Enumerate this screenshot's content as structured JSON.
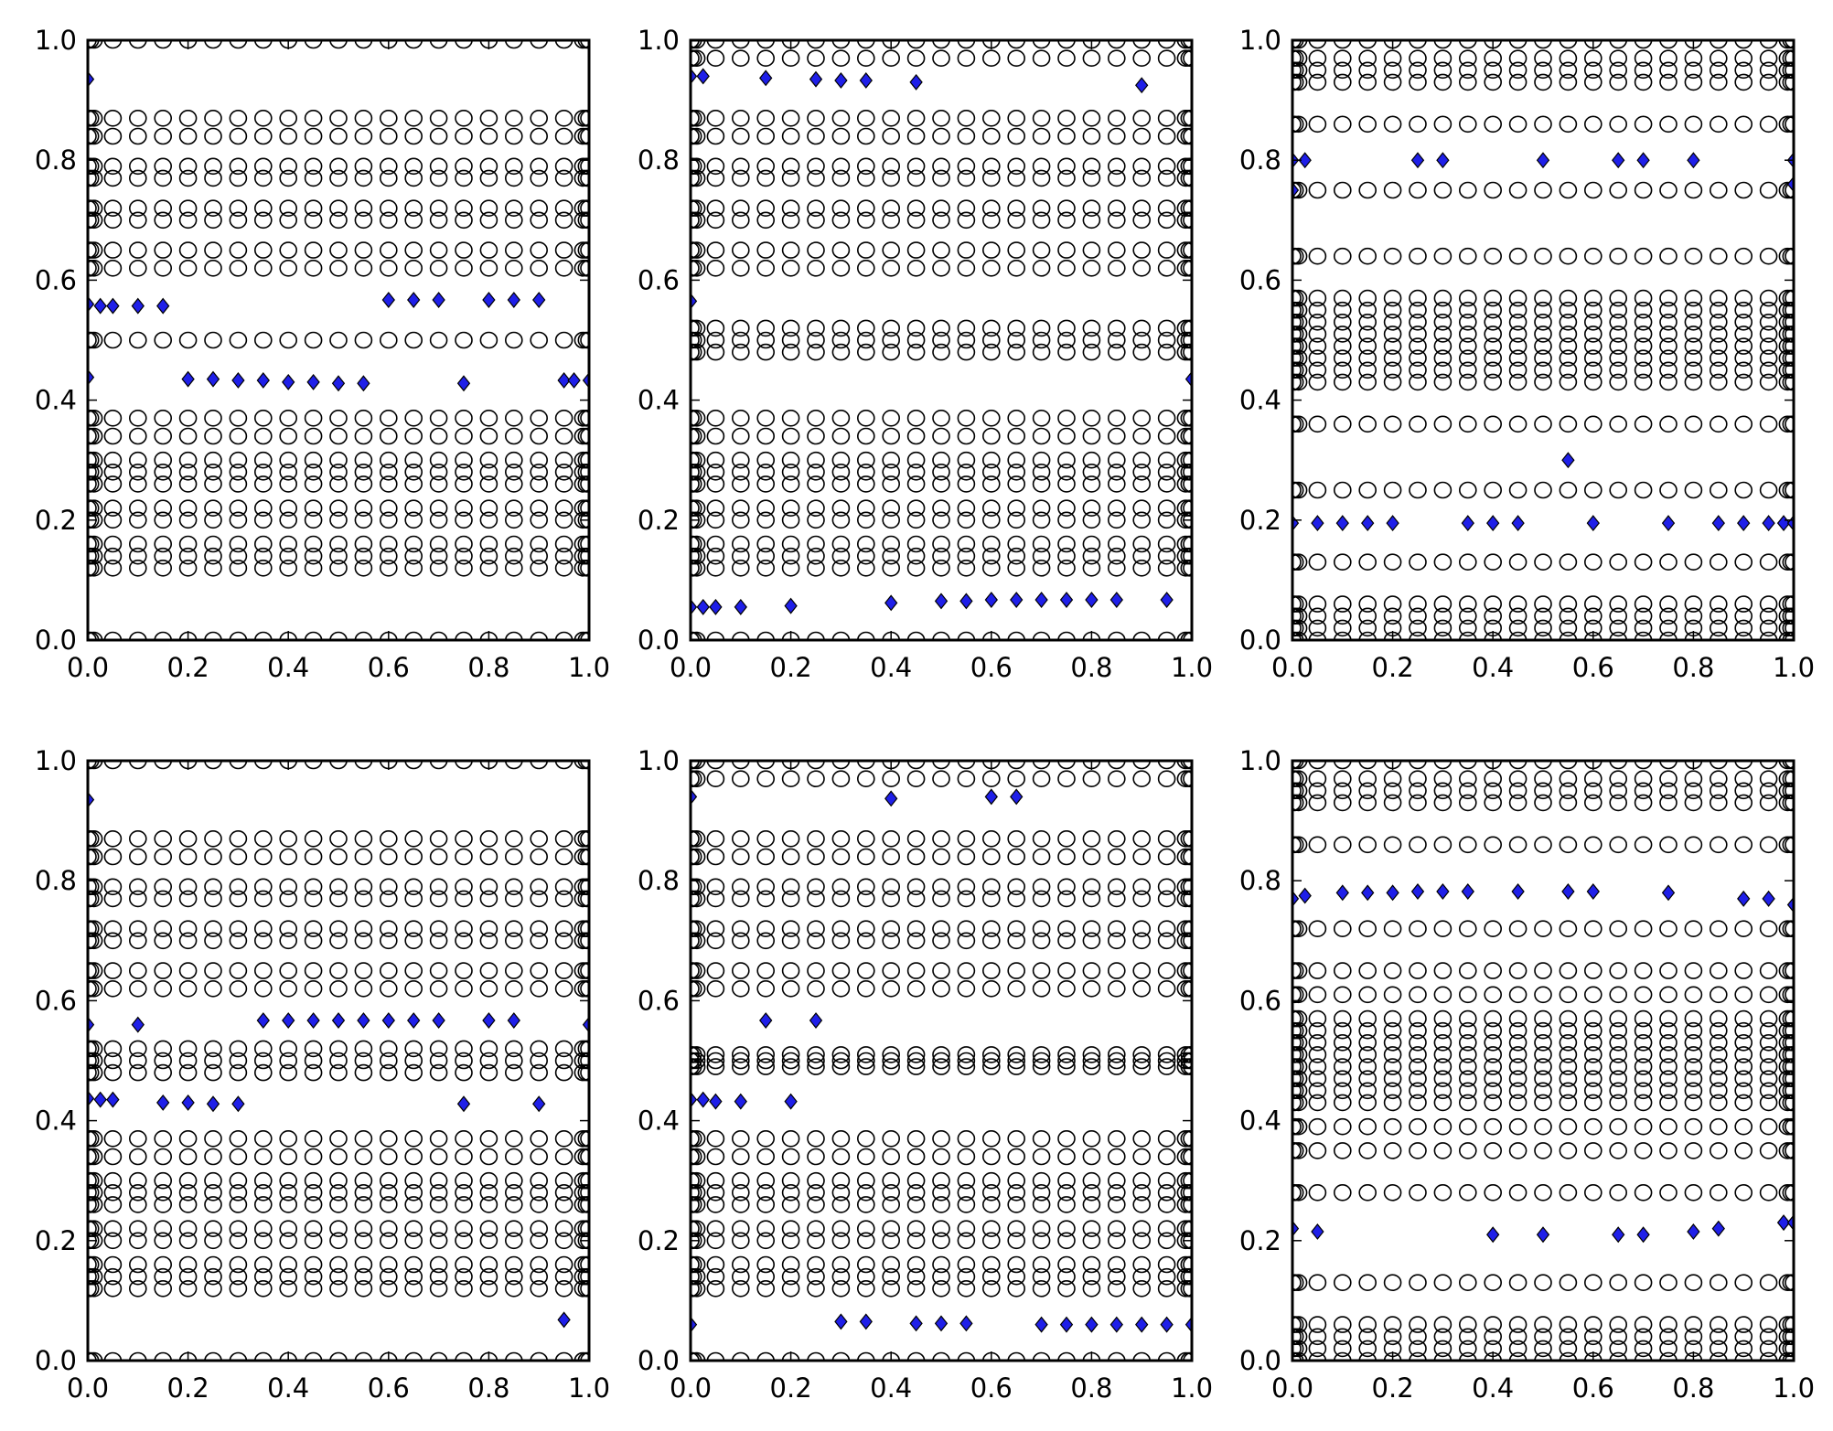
{
  "figure": {
    "layout": "2x3 grid",
    "panel_count": 6
  },
  "style": {
    "ring_stroke": "#000000",
    "diamond_fill": "#1f1fe8",
    "frame_color": "#000000",
    "background": "#ffffff"
  },
  "chart_data": [
    {
      "panel": "top-left",
      "type": "scatter",
      "title": "",
      "xlabel": "",
      "ylabel": "",
      "xlim": [
        0,
        1
      ],
      "ylim": [
        0,
        1
      ],
      "xticks": [
        "0.0",
        "0.2",
        "0.4",
        "0.6",
        "0.8",
        "1.0"
      ],
      "yticks": [
        "0.0",
        "0.2",
        "0.4",
        "0.6",
        "0.8",
        "1.0"
      ],
      "series": [
        {
          "name": "open circles",
          "marker": "o",
          "rows": [
            0.0,
            0.12,
            0.14,
            0.16,
            0.2,
            0.22,
            0.26,
            0.28,
            0.3,
            0.34,
            0.37,
            0.5,
            0.62,
            0.65,
            0.7,
            0.72,
            0.77,
            0.79,
            0.84,
            0.87,
            1.0
          ]
        },
        {
          "name": "blue diamonds",
          "marker": "D",
          "points": [
            [
              0.0,
              0.935
            ],
            [
              0.0,
              0.56
            ],
            [
              0.025,
              0.557
            ],
            [
              0.05,
              0.557
            ],
            [
              0.1,
              0.557
            ],
            [
              0.15,
              0.557
            ],
            [
              0.6,
              0.567
            ],
            [
              0.65,
              0.567
            ],
            [
              0.7,
              0.567
            ],
            [
              0.8,
              0.567
            ],
            [
              0.85,
              0.567
            ],
            [
              0.9,
              0.567
            ],
            [
              0.0,
              0.438
            ],
            [
              0.2,
              0.435
            ],
            [
              0.25,
              0.435
            ],
            [
              0.3,
              0.433
            ],
            [
              0.35,
              0.433
            ],
            [
              0.4,
              0.43
            ],
            [
              0.45,
              0.43
            ],
            [
              0.5,
              0.428
            ],
            [
              0.55,
              0.428
            ],
            [
              0.75,
              0.428
            ],
            [
              0.95,
              0.433
            ],
            [
              0.97,
              0.433
            ],
            [
              1.0,
              0.433
            ]
          ]
        }
      ]
    },
    {
      "panel": "top-middle",
      "type": "scatter",
      "title": "",
      "xlabel": "",
      "ylabel": "",
      "xlim": [
        0,
        1
      ],
      "ylim": [
        0,
        1
      ],
      "xticks": [
        "0.0",
        "0.2",
        "0.4",
        "0.6",
        "0.8",
        "1.0"
      ],
      "yticks": [
        "0.0",
        "0.2",
        "0.4",
        "0.6",
        "0.8",
        "1.0"
      ],
      "series": [
        {
          "name": "open circles",
          "marker": "o",
          "rows": [
            0.0,
            0.12,
            0.14,
            0.16,
            0.2,
            0.22,
            0.26,
            0.28,
            0.3,
            0.34,
            0.37,
            0.48,
            0.5,
            0.52,
            0.62,
            0.65,
            0.7,
            0.72,
            0.77,
            0.79,
            0.84,
            0.87,
            0.97,
            1.0
          ]
        },
        {
          "name": "blue diamonds",
          "marker": "D",
          "points": [
            [
              0.0,
              0.94
            ],
            [
              0.025,
              0.94
            ],
            [
              0.15,
              0.937
            ],
            [
              0.25,
              0.935
            ],
            [
              0.3,
              0.933
            ],
            [
              0.35,
              0.933
            ],
            [
              0.45,
              0.93
            ],
            [
              0.9,
              0.925
            ],
            [
              0.0,
              0.565
            ],
            [
              1.0,
              0.435
            ],
            [
              0.0,
              0.055
            ],
            [
              0.025,
              0.055
            ],
            [
              0.05,
              0.055
            ],
            [
              0.1,
              0.055
            ],
            [
              0.2,
              0.057
            ],
            [
              0.4,
              0.062
            ],
            [
              0.5,
              0.065
            ],
            [
              0.55,
              0.065
            ],
            [
              0.6,
              0.067
            ],
            [
              0.65,
              0.067
            ],
            [
              0.7,
              0.067
            ],
            [
              0.75,
              0.067
            ],
            [
              0.8,
              0.067
            ],
            [
              0.85,
              0.067
            ],
            [
              0.95,
              0.067
            ]
          ]
        }
      ]
    },
    {
      "panel": "top-right",
      "type": "scatter",
      "title": "",
      "xlabel": "",
      "ylabel": "",
      "xlim": [
        0,
        1
      ],
      "ylim": [
        0,
        1
      ],
      "xticks": [
        "0.0",
        "0.2",
        "0.4",
        "0.6",
        "0.8",
        "1.0"
      ],
      "yticks": [
        "0.0",
        "0.2",
        "0.4",
        "0.6",
        "0.8",
        "1.0"
      ],
      "series": [
        {
          "name": "open circles",
          "marker": "o",
          "rows": [
            0.0,
            0.02,
            0.04,
            0.06,
            0.13,
            0.25,
            0.36,
            0.43,
            0.45,
            0.47,
            0.49,
            0.51,
            0.53,
            0.55,
            0.57,
            0.64,
            0.75,
            0.86,
            0.93,
            0.95,
            0.97,
            1.0
          ]
        },
        {
          "name": "blue diamonds",
          "marker": "D",
          "points": [
            [
              0.0,
              0.8
            ],
            [
              0.025,
              0.8
            ],
            [
              0.25,
              0.8
            ],
            [
              0.3,
              0.8
            ],
            [
              0.5,
              0.8
            ],
            [
              0.65,
              0.8
            ],
            [
              0.7,
              0.8
            ],
            [
              0.8,
              0.8
            ],
            [
              1.0,
              0.8
            ],
            [
              0.0,
              0.75
            ],
            [
              1.0,
              0.76
            ],
            [
              0.55,
              0.3
            ],
            [
              0.0,
              0.195
            ],
            [
              0.05,
              0.195
            ],
            [
              0.1,
              0.195
            ],
            [
              0.15,
              0.195
            ],
            [
              0.2,
              0.195
            ],
            [
              0.35,
              0.195
            ],
            [
              0.4,
              0.195
            ],
            [
              0.45,
              0.195
            ],
            [
              0.6,
              0.195
            ],
            [
              0.75,
              0.195
            ],
            [
              0.85,
              0.195
            ],
            [
              0.9,
              0.195
            ],
            [
              0.95,
              0.195
            ],
            [
              0.98,
              0.195
            ],
            [
              1.0,
              0.195
            ]
          ]
        }
      ]
    },
    {
      "panel": "bottom-left",
      "type": "scatter",
      "title": "",
      "xlabel": "",
      "ylabel": "",
      "xlim": [
        0,
        1
      ],
      "ylim": [
        0,
        1
      ],
      "xticks": [
        "0.0",
        "0.2",
        "0.4",
        "0.6",
        "0.8",
        "1.0"
      ],
      "yticks": [
        "0.0",
        "0.2",
        "0.4",
        "0.6",
        "0.8",
        "1.0"
      ],
      "series": [
        {
          "name": "open circles",
          "marker": "o",
          "rows": [
            0.0,
            0.12,
            0.14,
            0.16,
            0.2,
            0.22,
            0.26,
            0.28,
            0.3,
            0.34,
            0.37,
            0.48,
            0.5,
            0.52,
            0.62,
            0.65,
            0.7,
            0.72,
            0.77,
            0.79,
            0.84,
            0.87,
            1.0
          ]
        },
        {
          "name": "blue diamonds",
          "marker": "D",
          "points": [
            [
              0.0,
              0.935
            ],
            [
              0.0,
              0.56
            ],
            [
              0.1,
              0.56
            ],
            [
              0.35,
              0.567
            ],
            [
              0.4,
              0.567
            ],
            [
              0.45,
              0.567
            ],
            [
              0.5,
              0.567
            ],
            [
              0.55,
              0.567
            ],
            [
              0.6,
              0.567
            ],
            [
              0.65,
              0.567
            ],
            [
              0.7,
              0.567
            ],
            [
              0.8,
              0.567
            ],
            [
              0.85,
              0.567
            ],
            [
              1.0,
              0.56
            ],
            [
              0.0,
              0.437
            ],
            [
              0.025,
              0.435
            ],
            [
              0.05,
              0.435
            ],
            [
              0.15,
              0.43
            ],
            [
              0.2,
              0.43
            ],
            [
              0.25,
              0.428
            ],
            [
              0.3,
              0.428
            ],
            [
              0.75,
              0.428
            ],
            [
              0.9,
              0.428
            ],
            [
              0.95,
              0.068
            ]
          ]
        }
      ]
    },
    {
      "panel": "bottom-middle",
      "type": "scatter",
      "title": "",
      "xlabel": "",
      "ylabel": "",
      "xlim": [
        0,
        1
      ],
      "ylim": [
        0,
        1
      ],
      "xticks": [
        "0.0",
        "0.2",
        "0.4",
        "0.6",
        "0.8",
        "1.0"
      ],
      "yticks": [
        "0.0",
        "0.2",
        "0.4",
        "0.6",
        "0.8",
        "1.0"
      ],
      "series": [
        {
          "name": "open circles",
          "marker": "o",
          "rows": [
            0.0,
            0.12,
            0.14,
            0.16,
            0.2,
            0.22,
            0.26,
            0.28,
            0.3,
            0.34,
            0.37,
            0.49,
            0.5,
            0.51,
            0.62,
            0.65,
            0.7,
            0.72,
            0.77,
            0.79,
            0.84,
            0.87,
            0.97,
            1.0
          ]
        },
        {
          "name": "blue diamonds",
          "marker": "D",
          "points": [
            [
              0.0,
              0.94
            ],
            [
              0.4,
              0.937
            ],
            [
              0.6,
              0.94
            ],
            [
              0.65,
              0.94
            ],
            [
              0.15,
              0.567
            ],
            [
              0.25,
              0.567
            ],
            [
              0.0,
              0.435
            ],
            [
              0.025,
              0.435
            ],
            [
              0.05,
              0.432
            ],
            [
              0.1,
              0.432
            ],
            [
              0.2,
              0.432
            ],
            [
              0.0,
              0.06
            ],
            [
              0.3,
              0.065
            ],
            [
              0.35,
              0.065
            ],
            [
              0.45,
              0.062
            ],
            [
              0.5,
              0.062
            ],
            [
              0.55,
              0.062
            ],
            [
              0.7,
              0.06
            ],
            [
              0.75,
              0.06
            ],
            [
              0.8,
              0.06
            ],
            [
              0.85,
              0.06
            ],
            [
              0.9,
              0.06
            ],
            [
              0.95,
              0.06
            ],
            [
              1.0,
              0.06
            ]
          ]
        }
      ]
    },
    {
      "panel": "bottom-right",
      "type": "scatter",
      "title": "",
      "xlabel": "",
      "ylabel": "",
      "xlim": [
        0,
        1
      ],
      "ylim": [
        0,
        1
      ],
      "xticks": [
        "0.0",
        "0.2",
        "0.4",
        "0.6",
        "0.8",
        "1.0"
      ],
      "yticks": [
        "0.0",
        "0.2",
        "0.4",
        "0.6",
        "0.8",
        "1.0"
      ],
      "series": [
        {
          "name": "open circles",
          "marker": "o",
          "rows": [
            0.0,
            0.02,
            0.04,
            0.06,
            0.13,
            0.28,
            0.35,
            0.39,
            0.43,
            0.45,
            0.47,
            0.49,
            0.51,
            0.53,
            0.55,
            0.57,
            0.61,
            0.65,
            0.72,
            0.86,
            0.93,
            0.95,
            0.97,
            1.0
          ]
        },
        {
          "name": "blue diamonds",
          "marker": "D",
          "points": [
            [
              0.0,
              0.77
            ],
            [
              0.025,
              0.775
            ],
            [
              0.1,
              0.78
            ],
            [
              0.15,
              0.78
            ],
            [
              0.2,
              0.78
            ],
            [
              0.25,
              0.782
            ],
            [
              0.3,
              0.782
            ],
            [
              0.35,
              0.782
            ],
            [
              0.45,
              0.782
            ],
            [
              0.55,
              0.782
            ],
            [
              0.6,
              0.782
            ],
            [
              0.75,
              0.78
            ],
            [
              0.9,
              0.77
            ],
            [
              0.95,
              0.77
            ],
            [
              1.0,
              0.76
            ],
            [
              0.0,
              0.22
            ],
            [
              0.05,
              0.215
            ],
            [
              0.4,
              0.21
            ],
            [
              0.5,
              0.21
            ],
            [
              0.65,
              0.21
            ],
            [
              0.7,
              0.21
            ],
            [
              0.8,
              0.215
            ],
            [
              0.85,
              0.22
            ],
            [
              0.98,
              0.23
            ],
            [
              1.0,
              0.23
            ]
          ]
        }
      ]
    }
  ]
}
